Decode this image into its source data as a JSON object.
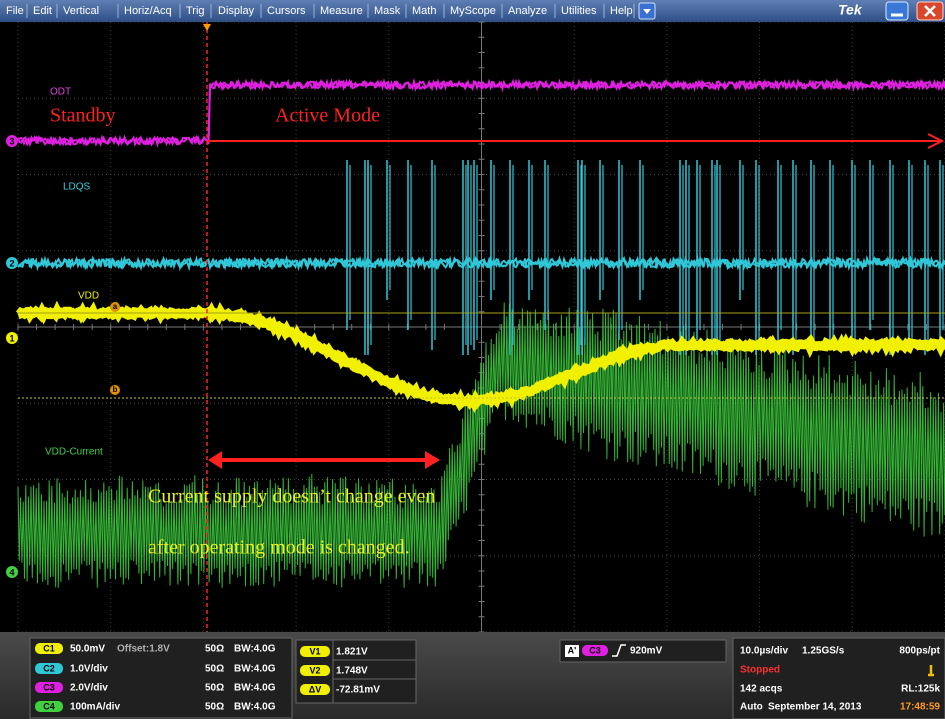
{
  "menu": [
    "File",
    "Edit",
    "Vertical",
    "Horiz/Acq",
    "Trig",
    "Display",
    "Cursors",
    "Measure",
    "Mask",
    "Math",
    "MyScope",
    "Analyze",
    "Utilities",
    "Help"
  ],
  "brand": "Tek",
  "display": {
    "channel_markers": [
      "3",
      "2",
      "1",
      "4"
    ],
    "trace_labels": {
      "odt": "ODT",
      "ldqs": "LDQS",
      "vdd": "VDD",
      "vdd_current": "VDD-Current"
    },
    "cursor_markers": [
      "a",
      "b"
    ],
    "annotations": {
      "standby": "Standby",
      "active_mode": "Active Mode",
      "note_line1": "Current supply doesn’t change even",
      "note_line2": "after operating mode is changed."
    }
  },
  "status": {
    "channels": [
      {
        "badge": "C1",
        "scale": "50.0mV",
        "offset": "Offset:1.8V",
        "impedance": "50Ω",
        "bandwidth": "BW:4.0G"
      },
      {
        "badge": "C2",
        "scale": "1.0V/div",
        "impedance": "50Ω",
        "bandwidth": "BW:4.0G"
      },
      {
        "badge": "C3",
        "scale": "2.0V/div",
        "impedance": "50Ω",
        "bandwidth": "BW:4.0G"
      },
      {
        "badge": "C4",
        "scale": "100mA/div",
        "impedance": "50Ω",
        "bandwidth": "BW:4.0G"
      }
    ],
    "cursors": [
      {
        "badge": "V1",
        "value": "1.821V"
      },
      {
        "badge": "V2",
        "value": "1.748V"
      },
      {
        "badge": "ΔV",
        "value": "-72.81mV"
      }
    ],
    "trigger": {
      "source": "A'",
      "channel": "C3",
      "level": "920mV"
    },
    "horizontal": {
      "scale": "10.0µs/div",
      "sample_rate": "1.25GS/s",
      "resolution": "800ps/pt"
    },
    "state": "Stopped",
    "acqs": "142 acqs",
    "record_length": "RL:125k",
    "mode": "Auto",
    "date": "September 14, 2013",
    "time": "17:48:59"
  }
}
